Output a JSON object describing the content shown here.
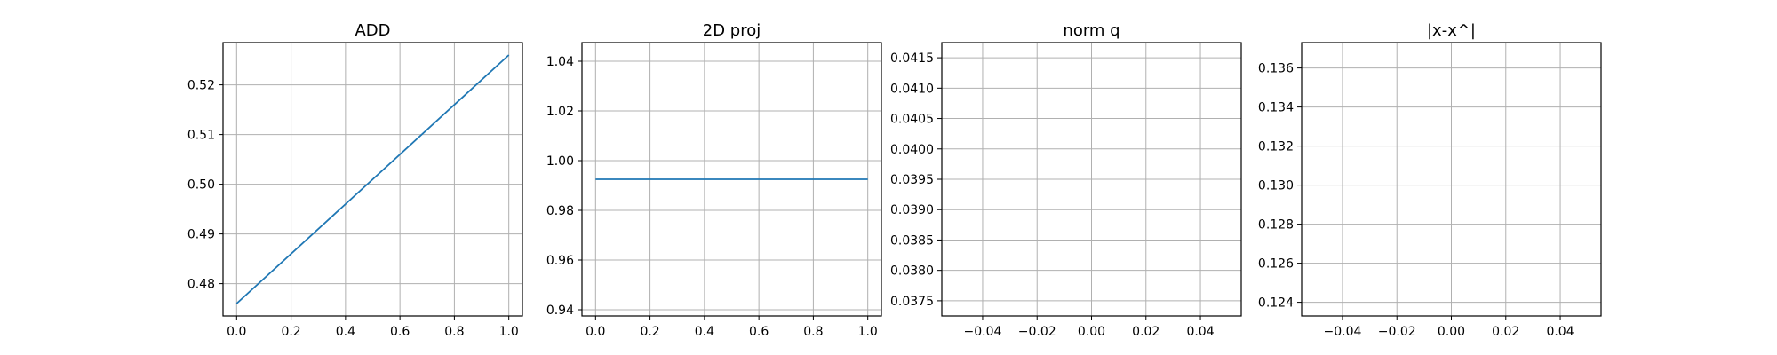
{
  "figure": {
    "background": "#ffffff",
    "line_color": "#1f77b4",
    "grid_color": "#b0b0b0"
  },
  "chart_data": [
    {
      "type": "line",
      "title": "ADD",
      "xlabel": "",
      "ylabel": "",
      "grid": true,
      "xlim": [
        -0.05,
        1.05
      ],
      "ylim": [
        0.4735,
        0.5285
      ],
      "xticks": [
        0.0,
        0.2,
        0.4,
        0.6,
        0.8,
        1.0
      ],
      "xtick_labels": [
        "0.0",
        "0.2",
        "0.4",
        "0.6",
        "0.8",
        "1.0"
      ],
      "yticks": [
        0.48,
        0.49,
        0.5,
        0.51,
        0.52
      ],
      "ytick_labels": [
        "0.48",
        "0.49",
        "0.50",
        "0.51",
        "0.52"
      ],
      "series": [
        {
          "x": [
            0.0,
            1.0
          ],
          "y": [
            0.476,
            0.526
          ]
        }
      ]
    },
    {
      "type": "line",
      "title": "2D proj",
      "xlabel": "",
      "ylabel": "",
      "grid": true,
      "xlim": [
        -0.05,
        1.05
      ],
      "ylim": [
        0.9375,
        1.0475
      ],
      "xticks": [
        0.0,
        0.2,
        0.4,
        0.6,
        0.8,
        1.0
      ],
      "xtick_labels": [
        "0.0",
        "0.2",
        "0.4",
        "0.6",
        "0.8",
        "1.0"
      ],
      "yticks": [
        0.94,
        0.96,
        0.98,
        1.0,
        1.02,
        1.04
      ],
      "ytick_labels": [
        "0.94",
        "0.96",
        "0.98",
        "1.00",
        "1.02",
        "1.04"
      ],
      "series": [
        {
          "x": [
            0.0,
            1.0
          ],
          "y": [
            0.9925,
            0.9925
          ]
        }
      ]
    },
    {
      "type": "line",
      "title": "norm q",
      "xlabel": "",
      "ylabel": "",
      "grid": true,
      "xlim": [
        -0.055,
        0.055
      ],
      "ylim": [
        0.03725,
        0.04175
      ],
      "xticks": [
        -0.04,
        -0.02,
        0.0,
        0.02,
        0.04
      ],
      "xtick_labels": [
        "−0.04",
        "−0.02",
        "0.00",
        "0.02",
        "0.04"
      ],
      "yticks": [
        0.0375,
        0.038,
        0.0385,
        0.039,
        0.0395,
        0.04,
        0.0405,
        0.041,
        0.0415
      ],
      "ytick_labels": [
        "0.0375",
        "0.0380",
        "0.0385",
        "0.0390",
        "0.0395",
        "0.0400",
        "0.0405",
        "0.0410",
        "0.0415"
      ],
      "series": []
    },
    {
      "type": "line",
      "title": "|x-x^|",
      "xlabel": "",
      "ylabel": "",
      "grid": true,
      "xlim": [
        -0.055,
        0.055
      ],
      "ylim": [
        0.1233,
        0.1373
      ],
      "xticks": [
        -0.04,
        -0.02,
        0.0,
        0.02,
        0.04
      ],
      "xtick_labels": [
        "−0.04",
        "−0.02",
        "0.00",
        "0.02",
        "0.04"
      ],
      "yticks": [
        0.124,
        0.126,
        0.128,
        0.13,
        0.132,
        0.134,
        0.136
      ],
      "ytick_labels": [
        "0.124",
        "0.126",
        "0.128",
        "0.130",
        "0.132",
        "0.134",
        "0.136"
      ],
      "series": []
    }
  ]
}
